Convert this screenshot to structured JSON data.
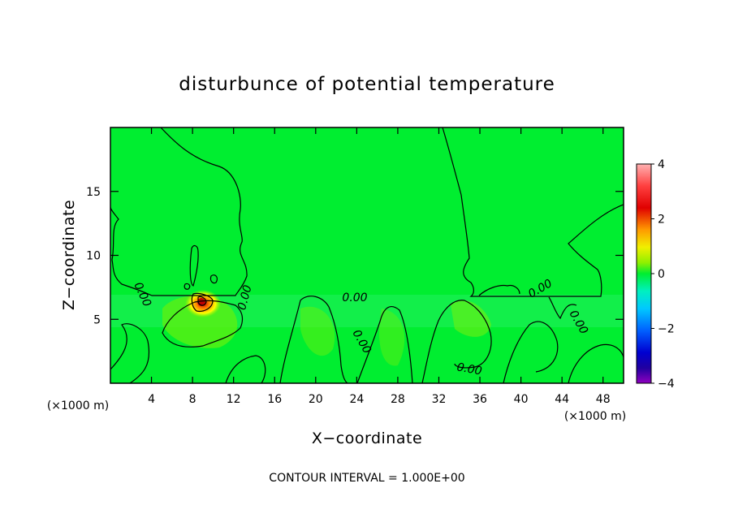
{
  "chart_data": {
    "type": "heatmap",
    "title": "disturbunce of potential temperature",
    "xlabel": "X−coordinate",
    "ylabel": "Z−coordinate",
    "x_unit": "(×1000 m)",
    "z_unit": "(×1000 m)",
    "xlim": [
      0,
      50
    ],
    "ylim": [
      0,
      20
    ],
    "xticks": [
      4,
      8,
      12,
      16,
      20,
      24,
      28,
      32,
      36,
      40,
      44,
      48
    ],
    "xtick_labels": [
      "4",
      "8",
      "12",
      "16",
      "20",
      "24",
      "28",
      "32",
      "36",
      "40",
      "44",
      "48"
    ],
    "yticks": [
      5,
      10,
      15
    ],
    "ytick_labels": [
      "5",
      "10",
      "15"
    ],
    "colorbar": {
      "range": [
        -4,
        4
      ],
      "ticks": [
        4,
        2,
        0,
        -2,
        -4
      ],
      "tick_labels": [
        "4",
        "2",
        "0",
        "−2",
        "−4"
      ]
    },
    "contour_labels": [
      {
        "text": "0.00",
        "x": 23.6,
        "z": 6.9
      },
      {
        "text": "0.00",
        "x": 34.4,
        "z": 1.4
      },
      {
        "text": "0.00",
        "x": 41.6,
        "z": 6.9
      },
      {
        "text": "0.00",
        "x": 13.3,
        "z": 7.1
      },
      {
        "text": "0.00",
        "x": 25.2,
        "z": 3.0
      },
      {
        "text": "0.00",
        "x": 45.6,
        "z": 4.6
      },
      {
        "text": "0.00",
        "x": 3.2,
        "z": 6.3
      }
    ],
    "features": [
      {
        "label": "warm anomaly",
        "x": 9.0,
        "z": 6.4,
        "value": 3.5
      }
    ],
    "grid": false,
    "legend": "colorbar-right",
    "contour_interval_text": "CONTOUR INTERVAL = 1.000E+00"
  }
}
